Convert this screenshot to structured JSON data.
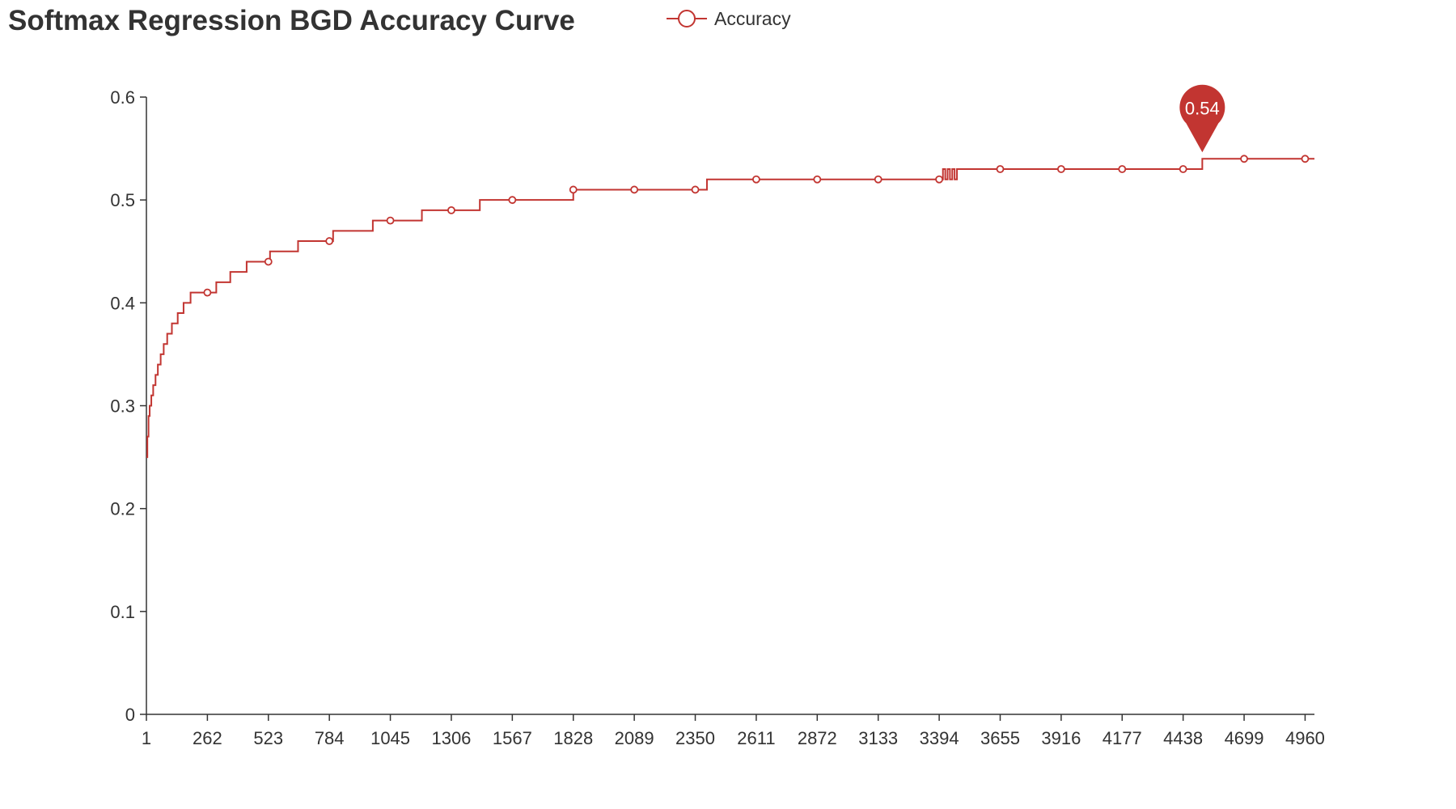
{
  "chart_data": {
    "type": "line",
    "title": "Softmax Regression BGD Accuracy Curve",
    "xlabel": "",
    "ylabel": "",
    "legend_position": "top-center",
    "grid": false,
    "color": "#c23531",
    "xlim": [
      1,
      5000
    ],
    "ylim": [
      0,
      0.6
    ],
    "x_ticks": [
      "1",
      "262",
      "523",
      "784",
      "1045",
      "1306",
      "1567",
      "1828",
      "2089",
      "2350",
      "2611",
      "2872",
      "3133",
      "3394",
      "3655",
      "3916",
      "4177",
      "4438",
      "4699",
      "4960"
    ],
    "y_ticks": [
      "0",
      "0.1",
      "0.2",
      "0.3",
      "0.4",
      "0.5",
      "0.6"
    ],
    "series": [
      {
        "name": "Accuracy",
        "step": true,
        "x": [
          1,
          5,
          10,
          15,
          22,
          30,
          40,
          50,
          62,
          75,
          90,
          110,
          135,
          160,
          190,
          225,
          262,
          300,
          360,
          430,
          500,
          530,
          545,
          650,
          784,
          800,
          970,
          1045,
          1180,
          1306,
          1420,
          1428,
          1567,
          1800,
          1828,
          2089,
          2350,
          2400,
          2611,
          2872,
          3133,
          3394,
          3410,
          3420,
          3430,
          3440,
          3450,
          3460,
          3470,
          3480,
          3655,
          3916,
          4177,
          4438,
          4520,
          4699,
          4960,
          5000
        ],
        "y": [
          0.25,
          0.27,
          0.29,
          0.3,
          0.31,
          0.32,
          0.33,
          0.34,
          0.35,
          0.36,
          0.37,
          0.38,
          0.39,
          0.4,
          0.41,
          0.41,
          0.41,
          0.42,
          0.43,
          0.44,
          0.44,
          0.45,
          0.45,
          0.46,
          0.46,
          0.47,
          0.48,
          0.48,
          0.49,
          0.49,
          0.49,
          0.5,
          0.5,
          0.5,
          0.51,
          0.51,
          0.51,
          0.52,
          0.52,
          0.52,
          0.52,
          0.52,
          0.53,
          0.52,
          0.53,
          0.52,
          0.53,
          0.52,
          0.53,
          0.53,
          0.53,
          0.53,
          0.53,
          0.53,
          0.54,
          0.54,
          0.54,
          0.54
        ]
      }
    ],
    "marker_points": [
      {
        "x": 262,
        "y": 0.41
      },
      {
        "x": 523,
        "y": 0.44
      },
      {
        "x": 784,
        "y": 0.46
      },
      {
        "x": 1045,
        "y": 0.48
      },
      {
        "x": 1306,
        "y": 0.49
      },
      {
        "x": 1567,
        "y": 0.5
      },
      {
        "x": 1828,
        "y": 0.51
      },
      {
        "x": 2089,
        "y": 0.51
      },
      {
        "x": 2350,
        "y": 0.51
      },
      {
        "x": 2611,
        "y": 0.52
      },
      {
        "x": 2872,
        "y": 0.52
      },
      {
        "x": 3133,
        "y": 0.52
      },
      {
        "x": 3394,
        "y": 0.52
      },
      {
        "x": 3655,
        "y": 0.53
      },
      {
        "x": 3916,
        "y": 0.53
      },
      {
        "x": 4177,
        "y": 0.53
      },
      {
        "x": 4438,
        "y": 0.53
      },
      {
        "x": 4699,
        "y": 0.54
      },
      {
        "x": 4960,
        "y": 0.54
      }
    ],
    "max_pin": {
      "x": 4520,
      "y": 0.54,
      "label": "0.54"
    }
  }
}
